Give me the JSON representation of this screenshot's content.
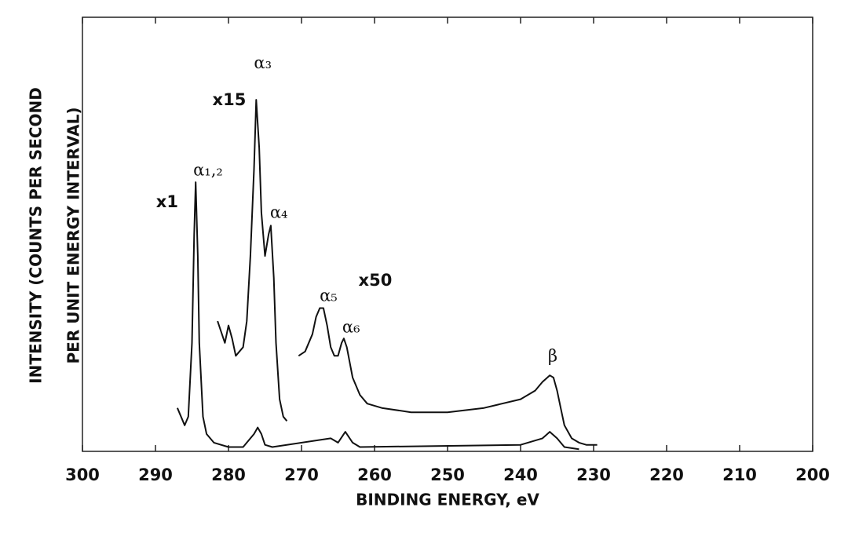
{
  "chart_data": {
    "type": "line",
    "xlabel": "BINDING ENERGY, eV",
    "ylabel": [
      "INTENSITY (COUNTS PER SECOND",
      "PER UNIT ENERGY INTERVAL)"
    ],
    "xlim": [
      300,
      200
    ],
    "xticks": [
      300,
      290,
      280,
      270,
      260,
      250,
      240,
      230,
      220,
      210,
      200
    ],
    "ylim": [
      0,
      100
    ],
    "color": "#111111",
    "series": [
      {
        "x": [
          287,
          286,
          285.5,
          285,
          284.7,
          284.5,
          284.2,
          284,
          283.5,
          283,
          282,
          280,
          278,
          276.5,
          276,
          275.5,
          275,
          274,
          266,
          265,
          264,
          263,
          262,
          240,
          237,
          236,
          235,
          234,
          232
        ],
        "values": [
          10,
          6,
          8,
          25,
          50,
          62,
          45,
          25,
          8,
          4,
          2,
          1,
          1,
          4,
          5.5,
          4,
          1.5,
          1,
          3,
          2,
          4.5,
          2,
          1,
          1.5,
          3,
          4.5,
          3,
          1,
          0.5
        ]
      },
      {
        "x": [
          281.5,
          280.5,
          280,
          279.5,
          279,
          278.5,
          278,
          277.5,
          277,
          276.5,
          276.2,
          275.8,
          275.5,
          275,
          274.5,
          274.2,
          273.8,
          273.5,
          273,
          272.5,
          272
        ],
        "values": [
          30,
          25,
          29,
          26,
          22,
          23,
          24,
          30,
          45,
          65,
          81,
          70,
          55,
          45,
          50,
          52,
          40,
          25,
          12,
          8,
          7
        ]
      },
      {
        "x": [
          270.4,
          269.5,
          268.5,
          268,
          267.5,
          267,
          266.5,
          266,
          265.5,
          265,
          264.5,
          264.2,
          263.8,
          263,
          262,
          261,
          259,
          255,
          250,
          245,
          240,
          238,
          237,
          236,
          235.5,
          235,
          234.5,
          234,
          233,
          232,
          231,
          229.5
        ],
        "values": [
          22,
          23,
          27,
          31,
          33,
          33,
          29,
          24,
          22,
          22,
          25,
          26,
          24,
          17,
          13,
          11,
          10,
          9,
          9,
          10,
          12,
          14,
          16,
          17.5,
          17,
          14,
          10,
          6,
          3,
          2,
          1.5,
          1.5
        ]
      }
    ],
    "annotations": [
      {
        "text": "x1",
        "x": 288.4,
        "y": 57.3
      },
      {
        "text": "α₁,₂",
        "x": 282.8,
        "y": 64.6
      },
      {
        "text": "x15",
        "x": 279.9,
        "y": 80.8
      },
      {
        "text": "α₃",
        "x": 275.3,
        "y": 89.2
      },
      {
        "text": "α₄",
        "x": 273.1,
        "y": 54.8
      },
      {
        "text": "α₅",
        "x": 266.3,
        "y": 35.6
      },
      {
        "text": "x50",
        "x": 259.9,
        "y": 39.2
      },
      {
        "text": "α₆",
        "x": 263.2,
        "y": 28.4
      },
      {
        "text": "β",
        "x": 235.6,
        "y": 21.7
      }
    ]
  }
}
